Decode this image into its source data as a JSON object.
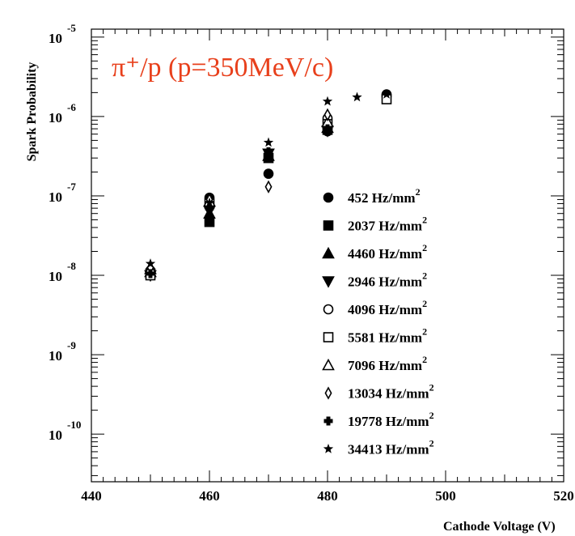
{
  "chart_data": {
    "type": "scatter",
    "title": "",
    "annotation": "π⁺/p (p=350MeV/c)",
    "annotation_color": "#e8401c",
    "xlabel": "Cathode Voltage (V)",
    "ylabel": "Spark Probability",
    "xlim": [
      440,
      520
    ],
    "ylim_log10": [
      -10.6,
      -4.9
    ],
    "y_scale": "log",
    "x_ticks": [
      {
        "value": 440,
        "label": "440"
      },
      {
        "value": 460,
        "label": "460"
      },
      {
        "value": 480,
        "label": "480"
      },
      {
        "value": 500,
        "label": "500"
      },
      {
        "value": 520,
        "label": "520"
      }
    ],
    "y_ticks": [
      {
        "exp": -5,
        "base": "10",
        "sup": "-5"
      },
      {
        "exp": -6,
        "base": "10",
        "sup": "-6"
      },
      {
        "exp": -7,
        "base": "10",
        "sup": "-7"
      },
      {
        "exp": -8,
        "base": "10",
        "sup": "-8"
      },
      {
        "exp": -9,
        "base": "10",
        "sup": "-9"
      },
      {
        "exp": -10,
        "base": "10",
        "sup": "-10"
      }
    ],
    "legend_position": "right",
    "series": [
      {
        "name": "452 Hz/mm",
        "sup": "2",
        "marker": "circle-filled",
        "points": [
          [
            450,
            1.1e-08
          ],
          [
            460,
            9.5e-08
          ],
          [
            470,
            1.9e-07
          ],
          [
            480,
            6.5e-07
          ],
          [
            490,
            1.9e-06
          ]
        ]
      },
      {
        "name": "2037 Hz/mm",
        "sup": "2",
        "marker": "square-filled",
        "points": [
          [
            450,
            1.05e-08
          ],
          [
            460,
            4.7e-08
          ],
          [
            470,
            3e-07
          ],
          [
            480,
            6.8e-07
          ]
        ]
      },
      {
        "name": "4460 Hz/mm",
        "sup": "2",
        "marker": "triangle-up-filled",
        "points": [
          [
            450,
            1.1e-08
          ],
          [
            460,
            6e-08
          ],
          [
            470,
            3.2e-07
          ],
          [
            480,
            7.2e-07
          ]
        ]
      },
      {
        "name": "2946 Hz/mm",
        "sup": "2",
        "marker": "triangle-down-filled",
        "points": [
          [
            450,
            1e-08
          ],
          [
            460,
            6.5e-08
          ],
          [
            470,
            3.4e-07
          ],
          [
            480,
            6.6e-07
          ]
        ]
      },
      {
        "name": "4096 Hz/mm",
        "sup": "2",
        "marker": "circle-open",
        "points": [
          [
            450,
            1.15e-08
          ],
          [
            460,
            7.5e-08
          ],
          [
            480,
            9.5e-07
          ],
          [
            490,
            1.8e-06
          ]
        ]
      },
      {
        "name": "5581 Hz/mm",
        "sup": "2",
        "marker": "square-open",
        "points": [
          [
            450,
            1e-08
          ],
          [
            460,
            8e-08
          ],
          [
            480,
            8e-07
          ],
          [
            490,
            1.65e-06
          ]
        ]
      },
      {
        "name": "7096 Hz/mm",
        "sup": "2",
        "marker": "triangle-up-open",
        "points": [
          [
            450,
            1.2e-08
          ],
          [
            460,
            8.5e-08
          ],
          [
            480,
            8.5e-07
          ]
        ]
      },
      {
        "name": "13034 Hz/mm",
        "sup": "2",
        "marker": "diamond-open",
        "points": [
          [
            450,
            1.25e-08
          ],
          [
            460,
            9e-08
          ],
          [
            470,
            1.3e-07
          ],
          [
            480,
            1.05e-06
          ]
        ]
      },
      {
        "name": "19778 Hz/mm",
        "sup": "2",
        "marker": "cross-filled",
        "points": [
          [
            450,
            1.05e-08
          ],
          [
            460,
            7e-08
          ],
          [
            470,
            3.6e-07
          ],
          [
            480,
            7e-07
          ]
        ]
      },
      {
        "name": "34413 Hz/mm",
        "sup": "2",
        "marker": "star-filled",
        "points": [
          [
            450,
            1.4e-08
          ],
          [
            460,
            8.2e-08
          ],
          [
            470,
            4.7e-07
          ],
          [
            480,
            1.55e-06
          ],
          [
            485,
            1.75e-06
          ],
          [
            490,
            1.9e-06
          ]
        ]
      }
    ]
  }
}
